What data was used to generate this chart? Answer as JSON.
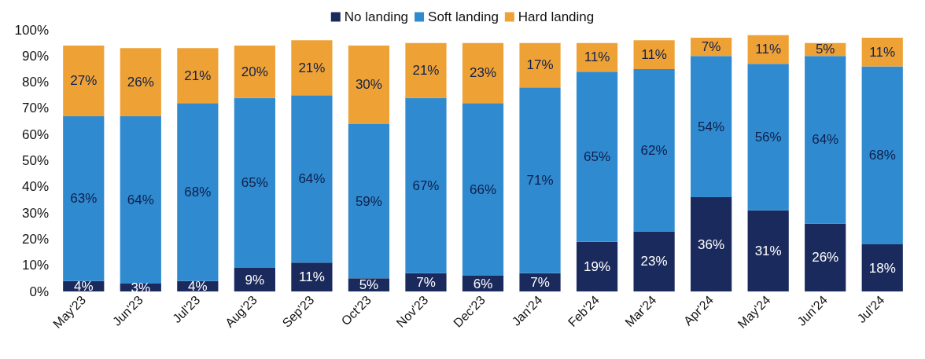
{
  "chart_data": {
    "type": "bar",
    "stacked": true,
    "legend": "top",
    "grid": false,
    "categories": [
      "May'23",
      "Jun'23",
      "Jul'23",
      "Aug'23",
      "Sep'23",
      "Oct'23",
      "Nov'23",
      "Dec'23",
      "Jan'24",
      "Feb'24",
      "Mar'24",
      "Apr'24",
      "May'24",
      "Jun'24",
      "Jul'24"
    ],
    "ylim": [
      0,
      100
    ],
    "yticks": [
      {
        "value": 0,
        "label": "0%"
      },
      {
        "value": 10,
        "label": "10%"
      },
      {
        "value": 20,
        "label": "20%"
      },
      {
        "value": 30,
        "label": "30%"
      },
      {
        "value": 40,
        "label": "40%"
      },
      {
        "value": 50,
        "label": "50%"
      },
      {
        "value": 60,
        "label": "60%"
      },
      {
        "value": 70,
        "label": "70%"
      },
      {
        "value": 80,
        "label": "80%"
      },
      {
        "value": 90,
        "label": "90%"
      },
      {
        "value": 100,
        "label": "100%"
      }
    ],
    "series": [
      {
        "name": "No landing",
        "color": "#1b2a5c",
        "values": [
          4,
          3,
          4,
          9,
          11,
          5,
          7,
          6,
          7,
          19,
          23,
          36,
          31,
          26,
          18
        ],
        "value_labels": [
          "4%",
          "3%",
          "4%",
          "9%",
          "11%",
          "5%",
          "7%",
          "6%",
          "7%",
          "19%",
          "23%",
          "36%",
          "31%",
          "26%",
          "18%"
        ]
      },
      {
        "name": "Soft landing",
        "color": "#2f8ad0",
        "values": [
          63,
          64,
          68,
          65,
          64,
          59,
          67,
          66,
          71,
          65,
          62,
          54,
          56,
          64,
          68
        ],
        "value_labels": [
          "63%",
          "64%",
          "68%",
          "65%",
          "64%",
          "59%",
          "67%",
          "66%",
          "71%",
          "65%",
          "62%",
          "54%",
          "56%",
          "64%",
          "68%"
        ]
      },
      {
        "name": "Hard landing",
        "color": "#eea236",
        "values": [
          27,
          26,
          21,
          20,
          21,
          30,
          21,
          23,
          17,
          11,
          11,
          7,
          11,
          5,
          11
        ],
        "value_labels": [
          "27%",
          "26%",
          "21%",
          "20%",
          "21%",
          "30%",
          "21%",
          "23%",
          "17%",
          "11%",
          "11%",
          "7%",
          "11%",
          "5%",
          "11%"
        ]
      }
    ]
  }
}
